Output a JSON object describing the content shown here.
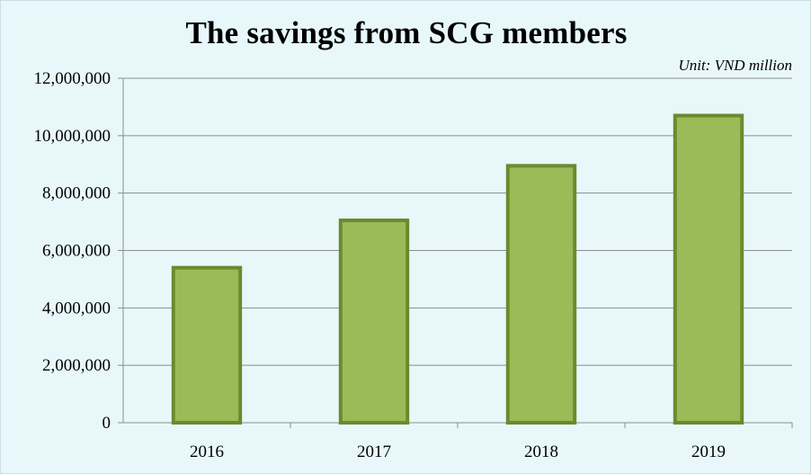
{
  "chart_data": {
    "type": "bar",
    "title": "The savings from SCG members",
    "unit": "Unit: VND million",
    "categories": [
      "2016",
      "2017",
      "2018",
      "2019"
    ],
    "values": [
      5400000,
      7050000,
      8950000,
      10700000
    ],
    "ylim": [
      0,
      12000000
    ],
    "yticks": [
      "0",
      "2,000,000",
      "4,000,000",
      "6,000,000",
      "8,000,000",
      "10,000,000",
      "12,000,000"
    ],
    "ytick_values": [
      0,
      2000000,
      4000000,
      6000000,
      8000000,
      10000000,
      12000000
    ],
    "grid": true,
    "legend": "none",
    "colors": {
      "bar_fill": "#9bbb59",
      "bar_stroke": "#6b8a2e",
      "grid": "#8c8c8c",
      "background": "#e8f8fa"
    }
  }
}
